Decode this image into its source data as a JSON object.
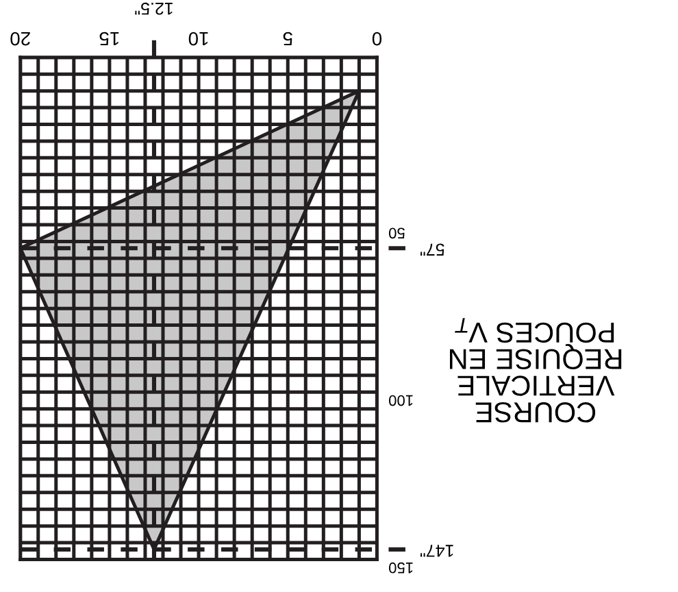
{
  "chart_data": {
    "type": "area",
    "ylabel": "COURSE\nVERTICALE\nREQUISE EN\nPOUCES V$_{T}$",
    "series": [
      {
        "color": "#c8c8c8",
        "x": [
          1,
          20,
          12.5,
          1
        ],
        "values": [
          10,
          57,
          147,
          10
        ]
      }
    ],
    "xlim": [
      20,
      0
    ],
    "ylim": [
      150,
      0
    ],
    "xticks": [
      0,
      {
        "value": 1,
        "label": null
      },
      {
        "value": 2,
        "label": null
      },
      {
        "value": 3,
        "label": null
      },
      {
        "value": 4,
        "label": null
      },
      5,
      {
        "value": 6,
        "label": null
      },
      {
        "value": 7,
        "label": null
      },
      {
        "value": 8,
        "label": null
      },
      {
        "value": 9,
        "label": null
      },
      10,
      {
        "value": 11,
        "label": null
      },
      {
        "value": 12,
        "label": null
      },
      {
        "value": 13,
        "label": null
      },
      {
        "value": 14,
        "label": null
      },
      15,
      {
        "value": 16,
        "label": null
      },
      {
        "value": 17,
        "label": null
      },
      {
        "value": 18,
        "label": null
      },
      {
        "value": 19,
        "label": null
      },
      20
    ],
    "yticks": [
      {
        "value": 0,
        "label": null
      },
      {
        "value": 5,
        "label": null
      },
      {
        "value": 10,
        "label": null
      },
      {
        "value": 15,
        "label": null
      },
      {
        "value": 20,
        "label": null
      },
      {
        "value": 25,
        "label": null
      },
      {
        "value": 30,
        "label": null
      },
      {
        "value": 35,
        "label": null
      },
      {
        "value": 40,
        "label": null
      },
      {
        "value": 45,
        "label": null
      },
      50,
      {
        "value": 55,
        "label": null
      },
      {
        "value": 60,
        "label": null
      },
      {
        "value": 65,
        "label": null
      },
      {
        "value": 70,
        "label": null
      },
      {
        "value": 75,
        "label": null
      },
      {
        "value": 80,
        "label": null
      },
      {
        "value": 85,
        "label": null
      },
      {
        "value": 90,
        "label": null
      },
      {
        "value": 95,
        "label": null
      },
      100,
      {
        "value": 105,
        "label": null
      },
      {
        "value": 110,
        "label": null
      },
      {
        "value": 115,
        "label": null
      },
      {
        "value": 120,
        "label": null
      },
      {
        "value": 125,
        "label": null
      },
      {
        "value": 130,
        "label": null
      },
      {
        "value": 135,
        "label": null
      },
      {
        "value": 140,
        "label": null
      },
      {
        "value": 145,
        "label": null
      },
      150
    ],
    "grid": true,
    "ref_lines": [
      {
        "axis": "x",
        "value": 12.5,
        "label": "12.5\"",
        "line_style": "dashed"
      },
      {
        "axis": "y",
        "value": 57,
        "label": "57\"",
        "line_style": "dashed"
      },
      {
        "axis": "y",
        "value": 147,
        "label": "147\"",
        "line_style": "dashed"
      }
    ]
  }
}
